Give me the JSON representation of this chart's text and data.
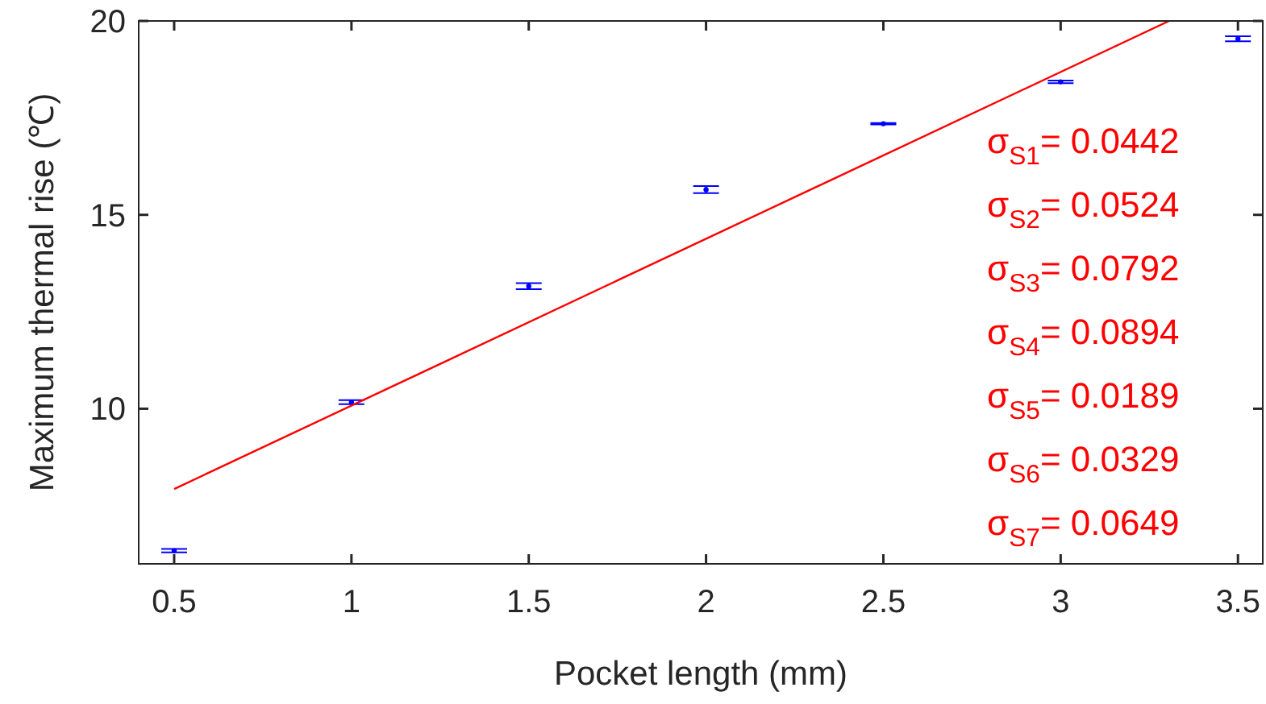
{
  "chart_data": {
    "type": "scatter",
    "xlabel": "Pocket length (mm)",
    "ylabel": "Maximum thermal rise (℃)",
    "xlim": [
      0.4,
      3.57
    ],
    "ylim": [
      6,
      20
    ],
    "xticks": [
      0.5,
      1,
      1.5,
      2,
      2.5,
      3,
      3.5
    ],
    "yticks": [
      10,
      15,
      20
    ],
    "grid": false,
    "series": [
      {
        "marker": "circle",
        "color": "#0000ff",
        "x": [
          0.5,
          1,
          1.5,
          2,
          2.5,
          3,
          3.5
        ],
        "values": [
          6.34,
          10.17,
          13.16,
          15.65,
          17.35,
          18.43,
          19.54
        ],
        "errors": [
          0.0442,
          0.0524,
          0.0792,
          0.0894,
          0.0189,
          0.0329,
          0.0649
        ]
      },
      {
        "type": "line",
        "color": "#ff0000",
        "line_style": "solid",
        "x": [
          0.5,
          3.306
        ],
        "values": [
          7.93,
          20
        ]
      }
    ],
    "annotations": [
      "σ$_{S1}$= 0.0442",
      "σ$_{S2}$= 0.0524",
      "σ$_{S3}$= 0.0792",
      "σ$_{S4}$= 0.0894",
      "σ$_{S5}$= 0.0189",
      "σ$_{S6}$= 0.0329",
      "σ$_{S7}$= 0.0649"
    ]
  }
}
